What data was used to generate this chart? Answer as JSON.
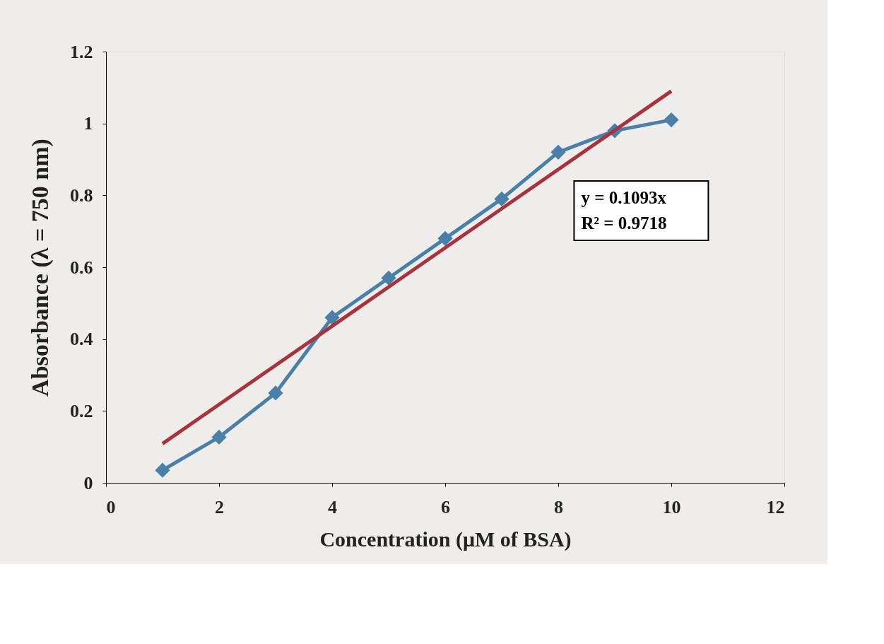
{
  "chart_data": {
    "type": "line",
    "xlabel": "Concentration (μM of BSA)",
    "ylabel": "Absorbance (λ = 750 nm)",
    "x": [
      1,
      2,
      3,
      4,
      5,
      6,
      7,
      8,
      9,
      10
    ],
    "series": [
      {
        "color": "#4a7fa8",
        "marker": "diamond",
        "values": [
          0.035,
          0.127,
          0.25,
          0.46,
          0.57,
          0.68,
          0.79,
          0.92,
          0.98,
          1.01
        ]
      },
      {
        "color": "#a8323e",
        "marker": "none",
        "x": [
          1,
          10
        ],
        "values": [
          0.109,
          1.09
        ]
      }
    ],
    "xlim": [
      0,
      12
    ],
    "xticks": [
      0,
      2,
      4,
      6,
      8,
      10,
      12
    ],
    "ylim": [
      0,
      1.2
    ],
    "yticks": [
      0,
      0.2,
      0.4,
      0.6,
      0.8,
      1,
      1.2
    ],
    "grid": false,
    "annotations": [
      "y = 0.1093x",
      "R² = 0.9718"
    ]
  }
}
